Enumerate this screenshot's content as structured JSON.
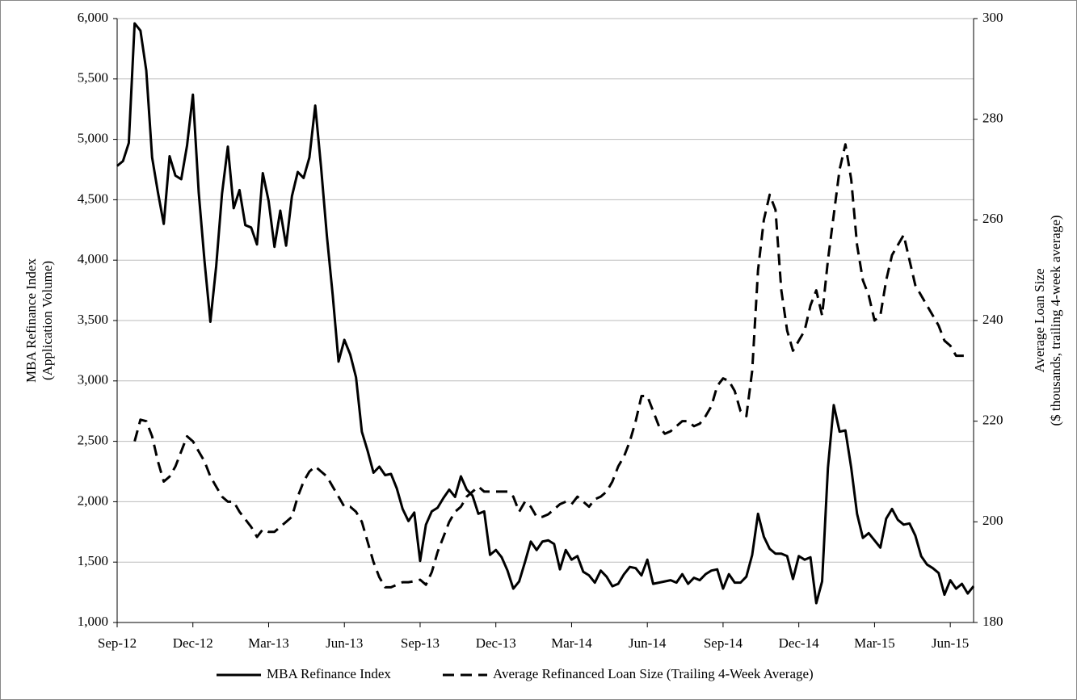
{
  "chart_data": {
    "type": "line",
    "ylabel": [
      "MBA Refinance Index",
      "(Application Volume)"
    ],
    "y2label": [
      "Average Loan Size",
      "($ thousands, trailing 4-week average)"
    ],
    "categories": [
      "Sep-12",
      null,
      null,
      null,
      null,
      null,
      null,
      null,
      null,
      null,
      null,
      null,
      null,
      "Dec-12",
      null,
      null,
      null,
      null,
      null,
      null,
      null,
      null,
      null,
      null,
      null,
      null,
      "Mar-13",
      null,
      null,
      null,
      null,
      null,
      null,
      null,
      null,
      null,
      null,
      null,
      null,
      "Jun-13",
      null,
      null,
      null,
      null,
      null,
      null,
      null,
      null,
      null,
      null,
      null,
      null,
      "Sep-13",
      null,
      null,
      null,
      null,
      null,
      null,
      null,
      null,
      null,
      null,
      null,
      null,
      "Dec-13",
      null,
      null,
      null,
      null,
      null,
      null,
      null,
      null,
      null,
      null,
      null,
      null,
      "Mar-14",
      null,
      null,
      null,
      null,
      null,
      null,
      null,
      null,
      null,
      null,
      null,
      null,
      "Jun-14",
      null,
      null,
      null,
      null,
      null,
      null,
      null,
      null,
      null,
      null,
      null,
      null,
      "Sep-14",
      null,
      null,
      null,
      null,
      null,
      null,
      null,
      null,
      null,
      null,
      null,
      null,
      "Dec-14",
      null,
      null,
      null,
      null,
      null,
      null,
      null,
      null,
      null,
      null,
      null,
      null,
      "Mar-15",
      null,
      null,
      null,
      null,
      null,
      null,
      null,
      null,
      null,
      null,
      null,
      null,
      "Jun-15",
      null,
      null,
      null,
      null
    ],
    "series": [
      {
        "name": "MBA Refinance Index",
        "color": "#000000",
        "dash": false,
        "values": [
          4780,
          4820,
          4970,
          5960,
          5900,
          5570,
          4850,
          4560,
          4300,
          4860,
          4700,
          4670,
          4950,
          5370,
          4560,
          3990,
          3490,
          3950,
          4550,
          4940,
          4430,
          4580,
          4290,
          4270,
          4130,
          4720,
          4490,
          4110,
          4410,
          4120,
          4530,
          4730,
          4680,
          4850,
          5280,
          4770,
          4200,
          3710,
          3160,
          3340,
          3220,
          3030,
          2580,
          2420,
          2240,
          2290,
          2220,
          2230,
          2110,
          1940,
          1840,
          1910,
          1510,
          1810,
          1920,
          1950,
          2030,
          2100,
          2040,
          2210,
          2100,
          2050,
          1900,
          1920,
          1560,
          1600,
          1540,
          1430,
          1280,
          1340,
          1500,
          1670,
          1600,
          1670,
          1680,
          1650,
          1440,
          1600,
          1520,
          1550,
          1420,
          1390,
          1330,
          1430,
          1380,
          1300,
          1320,
          1400,
          1460,
          1450,
          1390,
          1520,
          1320,
          1330,
          1340,
          1350,
          1330,
          1400,
          1320,
          1370,
          1350,
          1400,
          1430,
          1440,
          1280,
          1400,
          1330,
          1330,
          1380,
          1560,
          1900,
          1710,
          1610,
          1570,
          1570,
          1550,
          1360,
          1550,
          1520,
          1540,
          1160,
          1340,
          2280,
          2800,
          2580,
          2590,
          2280,
          1900,
          1700,
          1740,
          1680,
          1620,
          1860,
          1940,
          1850,
          1810,
          1820,
          1720,
          1550,
          1480,
          1450,
          1410,
          1230,
          1350,
          1280,
          1320,
          1240,
          1300
        ]
      },
      {
        "name": "Average Refinanced Loan Size (Trailing 4-Week Average)",
        "color": "#000000",
        "dash": true,
        "axis": "y2",
        "values": [
          null,
          null,
          null,
          216,
          220.3,
          220,
          217,
          212,
          208,
          209,
          211,
          214,
          217,
          216,
          214,
          212,
          209,
          207,
          205,
          204,
          204,
          202,
          200.5,
          199,
          197,
          198.5,
          198,
          198,
          199,
          200,
          201,
          205,
          208,
          210,
          211,
          210,
          209,
          207,
          205,
          203,
          203,
          202,
          200,
          196,
          192,
          189,
          187,
          187,
          187.5,
          188,
          188,
          188.2,
          188.5,
          187.5,
          190,
          194,
          197,
          200,
          202,
          203,
          205,
          206,
          207,
          206,
          206,
          206,
          206,
          206,
          205,
          202,
          204,
          203,
          201,
          201,
          201.5,
          202.5,
          203.5,
          204,
          203.5,
          205,
          204,
          203,
          204.5,
          205,
          206,
          208,
          211,
          213,
          216,
          220,
          225,
          225,
          222,
          219,
          217.5,
          218,
          219,
          220,
          220,
          219,
          219.5,
          221,
          223,
          227,
          228.5,
          228,
          226,
          222,
          221,
          230,
          250,
          260,
          265,
          262,
          246,
          238,
          234,
          236,
          238,
          243,
          246,
          241,
          252,
          261,
          270,
          275,
          268,
          255,
          248,
          245,
          240,
          241,
          248,
          253,
          255,
          257,
          252,
          247,
          245,
          243,
          241,
          239,
          236,
          235,
          233,
          233,
          233,
          null
        ]
      }
    ],
    "ylim": [
      1000,
      6000
    ],
    "yticks": [
      {
        "value": 1000,
        "label": "1,000"
      },
      {
        "value": 1500,
        "label": "1,500"
      },
      {
        "value": 2000,
        "label": "2,000"
      },
      {
        "value": 2500,
        "label": "2,500"
      },
      {
        "value": 3000,
        "label": "3,000"
      },
      {
        "value": 3500,
        "label": "3,500"
      },
      {
        "value": 4000,
        "label": "4,000"
      },
      {
        "value": 4500,
        "label": "4,500"
      },
      {
        "value": 5000,
        "label": "5,000"
      },
      {
        "value": 5500,
        "label": "5,500"
      },
      {
        "value": 6000,
        "label": "6,000"
      }
    ],
    "y2lim": [
      180,
      300
    ],
    "y2ticks": [
      180,
      200,
      220,
      240,
      260,
      280,
      300
    ],
    "grid": true,
    "legend": "bottom"
  }
}
